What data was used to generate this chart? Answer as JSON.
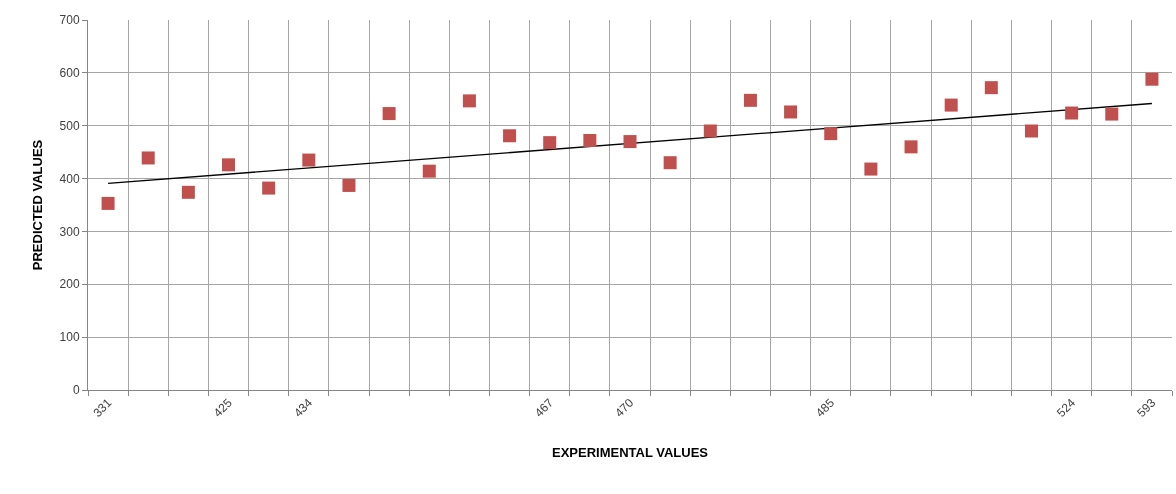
{
  "chart_data": {
    "type": "scatter",
    "xlabel": "EXPERIMENTAL VALUES",
    "ylabel": "PREDICTED VALUES",
    "categories": [
      "331",
      null,
      null,
      "425",
      null,
      "434",
      null,
      null,
      null,
      null,
      null,
      "467",
      null,
      "470",
      null,
      null,
      null,
      null,
      "485",
      null,
      null,
      null,
      null,
      null,
      "524",
      null,
      "593"
    ],
    "series": [
      {
        "color": "#c0504d",
        "marker": "square",
        "values": [
          353,
          439,
          374,
          426,
          382,
          435,
          387,
          523,
          414,
          547,
          481,
          468,
          472,
          470,
          430,
          490,
          548,
          526,
          485,
          418,
          460,
          539,
          572,
          490,
          524,
          522,
          588
        ]
      },
      {
        "type": "line",
        "color": "#000000",
        "marker": "none",
        "line_style": "solid",
        "values": [
          391,
          null,
          null,
          null,
          null,
          null,
          null,
          null,
          null,
          null,
          null,
          null,
          null,
          null,
          null,
          null,
          null,
          null,
          null,
          null,
          null,
          null,
          null,
          null,
          null,
          null,
          542
        ]
      }
    ],
    "ylim": [
      0,
      700
    ],
    "yticks": [
      0,
      100,
      200,
      300,
      400,
      500,
      600,
      700
    ],
    "grid": true,
    "legend": false
  }
}
